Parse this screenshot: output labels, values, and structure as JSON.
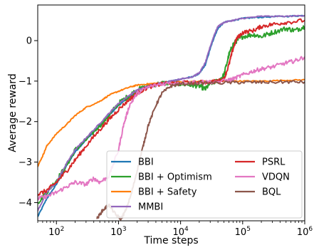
{
  "chart_data": {
    "type": "line",
    "title": "",
    "xlabel": "Time steps",
    "ylabel": "Average reward",
    "xscale": "log",
    "xlim": [
      50,
      1000000
    ],
    "ylim": [
      -4.45,
      0.88
    ],
    "x_ticks": [
      {
        "value": 100,
        "base": "10",
        "exp": "2"
      },
      {
        "value": 1000,
        "base": "10",
        "exp": "3"
      },
      {
        "value": 10000,
        "base": "10",
        "exp": "4"
      },
      {
        "value": 100000,
        "base": "10",
        "exp": "5"
      },
      {
        "value": 1000000,
        "base": "10",
        "exp": "6"
      }
    ],
    "y_ticks": [
      {
        "value": 0,
        "label": "0"
      },
      {
        "value": -1,
        "label": "−1"
      },
      {
        "value": -2,
        "label": "−2"
      },
      {
        "value": -3,
        "label": "−3"
      },
      {
        "value": -4,
        "label": "−4"
      }
    ],
    "grid": false,
    "legend_position": "lower-right",
    "series": [
      {
        "name": "BBI",
        "color": "#1f77b4",
        "x": [
          50,
          70,
          100,
          150,
          200,
          300,
          500,
          700,
          1000,
          1500,
          2000,
          3000,
          5000,
          7000,
          10000,
          15000,
          20000,
          25000,
          30000,
          35000,
          40000,
          50000,
          70000,
          100000,
          200000,
          500000,
          1000000
        ],
        "y": [
          -4.35,
          -3.9,
          -3.55,
          -3.05,
          -2.75,
          -2.45,
          -2.1,
          -1.85,
          -1.6,
          -1.4,
          -1.28,
          -1.15,
          -1.05,
          -1.0,
          -0.95,
          -0.9,
          -0.82,
          -0.6,
          -0.2,
          0.1,
          0.3,
          0.45,
          0.5,
          0.55,
          0.58,
          0.6,
          0.62
        ]
      },
      {
        "name": "BBI + Optimism",
        "color": "#2ca02c",
        "x": [
          50,
          70,
          100,
          150,
          200,
          300,
          500,
          700,
          1000,
          1500,
          2000,
          3000,
          5000,
          7000,
          10000,
          15000,
          20000,
          25000,
          30000,
          40000,
          50000,
          60000,
          70000,
          80000,
          100000,
          150000,
          200000,
          300000,
          500000,
          700000,
          1000000
        ],
        "y": [
          -4.0,
          -3.75,
          -3.45,
          -3.05,
          -2.7,
          -2.45,
          -2.1,
          -1.85,
          -1.55,
          -1.35,
          -1.22,
          -1.12,
          -1.05,
          -1.05,
          -1.07,
          -1.1,
          -1.12,
          -1.2,
          -1.05,
          -1.0,
          -0.85,
          -0.35,
          -0.1,
          0.0,
          0.1,
          0.15,
          0.1,
          0.2,
          0.3,
          0.25,
          0.35
        ]
      },
      {
        "name": "BBI + Safety",
        "color": "#ff7f0e",
        "x": [
          50,
          60,
          70,
          100,
          150,
          200,
          300,
          500,
          700,
          1000,
          1500,
          2000,
          3000,
          5000,
          10000,
          20000,
          50000,
          100000,
          200000,
          500000,
          1000000
        ],
        "y": [
          -3.1,
          -2.85,
          -2.6,
          -2.3,
          -2.05,
          -1.85,
          -1.65,
          -1.5,
          -1.35,
          -1.25,
          -1.15,
          -1.1,
          -1.07,
          -1.04,
          -1.02,
          -1.01,
          -1.0,
          -1.0,
          -1.0,
          -0.98,
          -0.97
        ]
      },
      {
        "name": "MMBI",
        "color": "#9467bd",
        "x": [
          50,
          70,
          100,
          150,
          200,
          300,
          500,
          700,
          1000,
          1500,
          2000,
          3000,
          5000,
          7000,
          10000,
          15000,
          20000,
          25000,
          30000,
          35000,
          40000,
          50000,
          70000,
          100000,
          200000,
          500000,
          1000000
        ],
        "y": [
          -4.2,
          -3.75,
          -3.5,
          -3.0,
          -2.7,
          -2.4,
          -2.05,
          -1.8,
          -1.55,
          -1.35,
          -1.22,
          -1.12,
          -1.04,
          -1.0,
          -0.95,
          -0.9,
          -0.8,
          -0.55,
          -0.15,
          0.15,
          0.35,
          0.45,
          0.5,
          0.55,
          0.6,
          0.6,
          0.62
        ]
      },
      {
        "name": "PSRL",
        "color": "#d62728",
        "x": [
          50,
          70,
          100,
          150,
          200,
          300,
          500,
          700,
          1000,
          1500,
          2000,
          3000,
          5000,
          10000,
          20000,
          30000,
          40000,
          50000,
          60000,
          70000,
          80000,
          100000,
          150000,
          200000,
          300000,
          500000,
          1000000
        ],
        "y": [
          -3.8,
          -3.7,
          -3.5,
          -3.2,
          -2.95,
          -2.6,
          -2.2,
          -1.95,
          -1.7,
          -1.45,
          -1.3,
          -1.15,
          -1.07,
          -1.04,
          -1.03,
          -1.02,
          -1.0,
          -0.95,
          -0.6,
          -0.2,
          0.05,
          0.2,
          0.25,
          0.35,
          0.4,
          0.45,
          0.5
        ]
      },
      {
        "name": "VDQN",
        "color": "#e377c2",
        "x": [
          50,
          70,
          100,
          150,
          200,
          300,
          400,
          500,
          700,
          1000,
          1200,
          1500,
          2000,
          3000,
          5000,
          10000,
          20000,
          50000,
          70000,
          100000,
          150000,
          200000,
          300000,
          500000,
          700000,
          1000000
        ],
        "y": [
          -3.9,
          -3.85,
          -3.75,
          -3.6,
          -3.5,
          -3.55,
          -3.4,
          -3.5,
          -3.35,
          -2.7,
          -2.1,
          -1.6,
          -1.3,
          -1.15,
          -1.07,
          -1.03,
          -1.02,
          -1.0,
          -0.95,
          -0.85,
          -0.75,
          -0.7,
          -0.65,
          -0.55,
          -0.5,
          -0.4
        ]
      },
      {
        "name": "BQL",
        "color": "#8c564b",
        "x": [
          450,
          550,
          700,
          900,
          1100,
          1300,
          1600,
          2000,
          2500,
          3000,
          4000,
          5000,
          7000,
          10000,
          20000,
          50000,
          100000,
          200000,
          500000,
          1000000
        ],
        "y": [
          -4.4,
          -4.2,
          -4.05,
          -4.3,
          -4.4,
          -4.2,
          -3.8,
          -3.2,
          -2.6,
          -2.1,
          -1.6,
          -1.3,
          -1.12,
          -1.07,
          -1.05,
          -1.04,
          -1.03,
          -1.03,
          -1.02,
          -1.02
        ]
      }
    ]
  }
}
